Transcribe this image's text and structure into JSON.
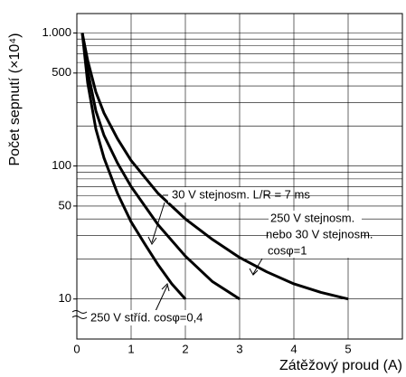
{
  "chart_data": {
    "type": "line",
    "y_label": "Počet sepnutí (×10⁴)",
    "x_label": "Zátěžový proud (A)",
    "log_y": true,
    "grid": true,
    "xlim": [
      0,
      6
    ],
    "xticks": [
      0,
      1,
      2,
      3,
      4,
      5
    ],
    "ylim": [
      5,
      1400
    ],
    "yticks": [
      {
        "value": 1000,
        "label": "1.000"
      },
      500,
      100,
      50,
      10
    ],
    "ygrid": [
      10,
      20,
      30,
      40,
      50,
      60,
      70,
      80,
      90,
      100,
      200,
      300,
      400,
      500,
      600,
      700,
      800,
      900,
      1000
    ],
    "series": [
      {
        "name": "250 V stříd. cosφ=0,4",
        "color": "#000000",
        "x": [
          0.1,
          0.2,
          0.35,
          0.5,
          0.75,
          1,
          1.25,
          1.5,
          1.75,
          2
        ],
        "values": [
          1000,
          420,
          190,
          115,
          62,
          38,
          26,
          18,
          13,
          10
        ]
      },
      {
        "name": "30 V stejnosm. L/R = 7 ms",
        "color": "#000000",
        "x": [
          0.1,
          0.2,
          0.35,
          0.5,
          0.75,
          1,
          1.5,
          2,
          2.5,
          3
        ],
        "values": [
          1000,
          520,
          260,
          170,
          105,
          70,
          36,
          21,
          13.5,
          10
        ]
      },
      {
        "name": "250 V stejnosm. nebo 30 V stejnosm. cosφ=1",
        "color": "#000000",
        "x": [
          0.1,
          0.2,
          0.35,
          0.5,
          0.75,
          1,
          1.5,
          2,
          2.5,
          3,
          3.5,
          4,
          4.5,
          5
        ],
        "values": [
          1000,
          620,
          360,
          250,
          160,
          110,
          62,
          40,
          28,
          20.5,
          16,
          13,
          11.2,
          10
        ]
      }
    ],
    "annotations": [
      "30 V stejnosm. L/R = 7 ms",
      "250 V stejnosm.",
      "nebo 30 V stejnosm.",
      "cosφ=1",
      "250 V stříd. cosφ=0,4"
    ]
  }
}
